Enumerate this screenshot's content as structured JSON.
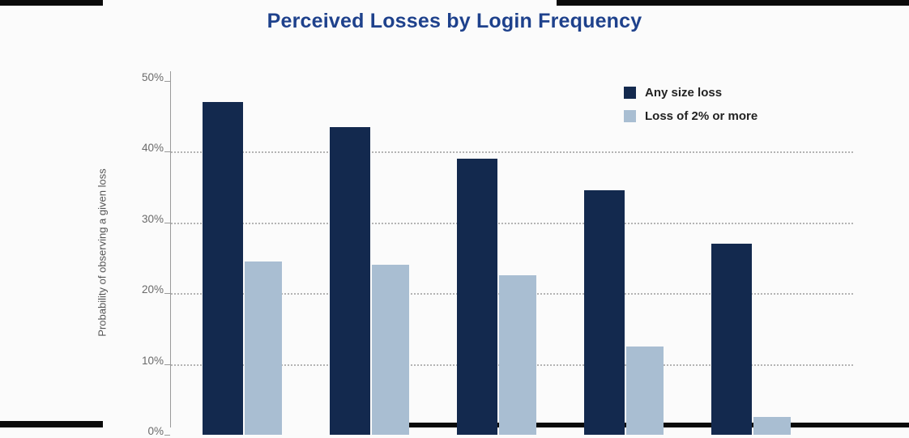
{
  "title": "Perceived Losses by Login Frequency",
  "chart_data": {
    "type": "bar",
    "title": "Perceived Losses by Login Frequency",
    "xlabel": "",
    "ylabel": "Probability of observing a given loss",
    "categories": [
      "",
      "",
      "",
      "",
      ""
    ],
    "series": [
      {
        "name": "Any size loss",
        "color": "#13294e",
        "values": [
          47,
          43.5,
          39,
          34.5,
          27
        ]
      },
      {
        "name": "Loss of 2% or more",
        "color": "#a9bed2",
        "values": [
          24.5,
          24,
          22.5,
          12.5,
          2.5
        ]
      }
    ],
    "ylim": [
      0,
      50
    ],
    "yticks": [
      {
        "label": "50%",
        "value": 50
      },
      {
        "label": "40%",
        "value": 40
      },
      {
        "label": "30%",
        "value": 30
      },
      {
        "label": "20%",
        "value": 20
      },
      {
        "label": "10%",
        "value": 10
      },
      {
        "label": "0%",
        "value": 0
      }
    ],
    "grid_ticks": [
      40,
      30,
      20,
      10
    ],
    "grid": "dotted horizontal",
    "legend_position": "top-right",
    "note_bottom_cut": "x-axis category labels are cut off below the visible screenshot area"
  },
  "colors": {
    "background": "#fbfbfb",
    "title_text": "#1e418c",
    "axis_line": "#9a9a9a",
    "tick_text": "#6a6a6a",
    "gridline": "#b3b3b3",
    "legend_text": "#222222",
    "edge_artifact": "#0b0b0b"
  }
}
